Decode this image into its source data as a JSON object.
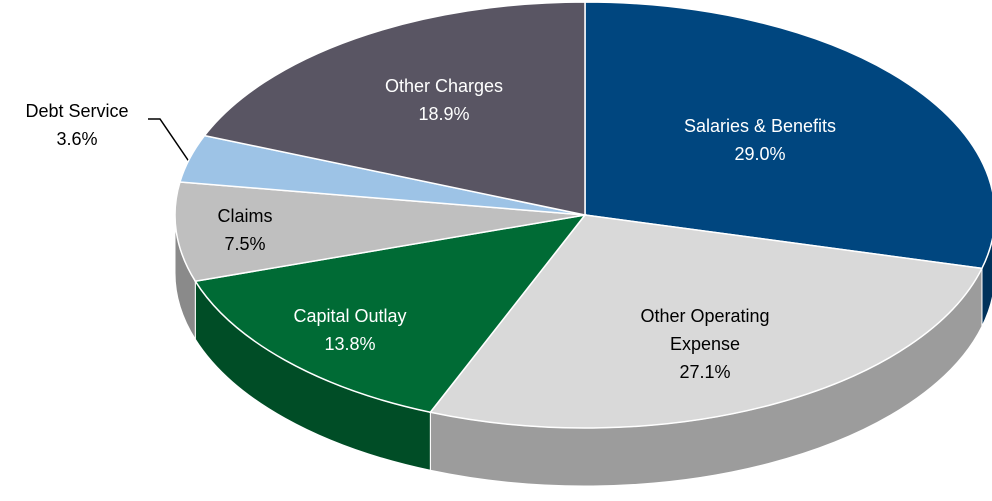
{
  "chart_data": {
    "type": "pie",
    "categories": [
      "Salaries & Benefits",
      "Other Operating Expense",
      "Capital Outlay",
      "Claims",
      "Debt Service",
      "Other Charges"
    ],
    "values": [
      29.0,
      27.1,
      13.8,
      7.5,
      3.6,
      18.9
    ],
    "value_labels": [
      "29.0%",
      "27.1%",
      "13.8%",
      "7.5%",
      "3.6%",
      "18.9%"
    ],
    "colors": [
      "#00467f",
      "#d9d9d9",
      "#006b35",
      "#bfbfbf",
      "#9dc3e6",
      "#595563"
    ]
  }
}
